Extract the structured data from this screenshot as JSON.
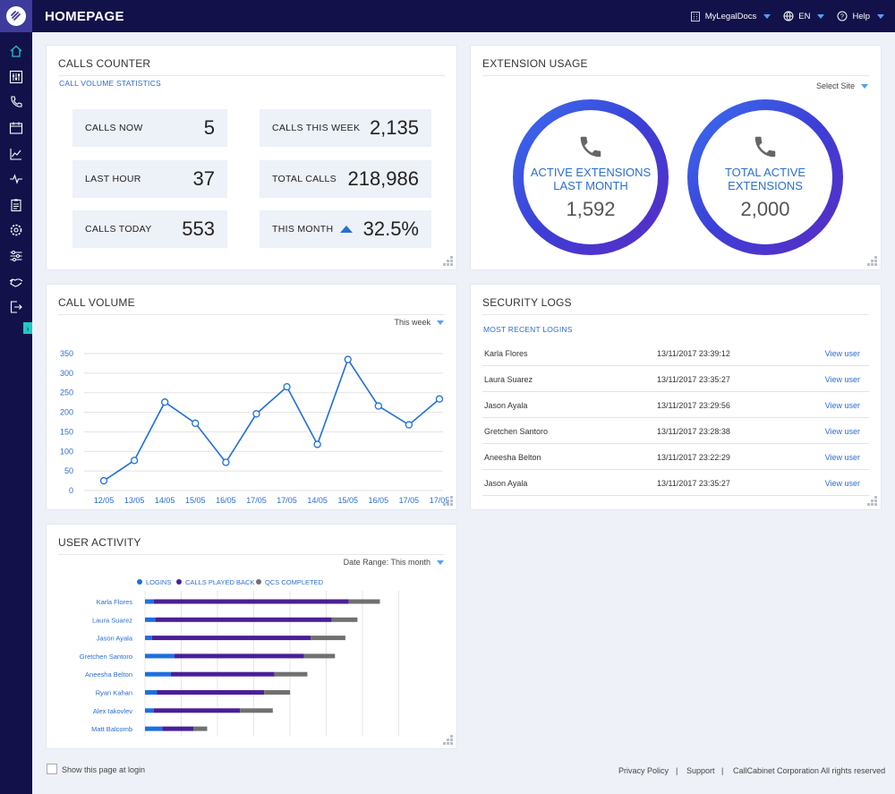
{
  "header": {
    "title": "HOMEPAGE",
    "account": "MyLegalDocs",
    "language": "EN",
    "help": "Help"
  },
  "sidebar": {
    "items": [
      "home-icon",
      "switchboard-icon",
      "phone-icon",
      "calendar-icon",
      "chart-icon",
      "pulse-icon",
      "clipboard-icon",
      "settings-icon",
      "sliders-icon",
      "handshake-icon",
      "logout-icon"
    ],
    "expand": "›"
  },
  "calls_counter": {
    "title": "CALLS COUNTER",
    "subtitle": "CALL VOLUME STATISTICS",
    "tiles": [
      {
        "label": "CALLS NOW",
        "value": "5"
      },
      {
        "label": "LAST HOUR",
        "value": "37"
      },
      {
        "label": "CALLS TODAY",
        "value": "553"
      },
      {
        "label": "CALLS THIS WEEK",
        "value": "2,135"
      },
      {
        "label": "TOTAL CALLS",
        "value": "218,986"
      },
      {
        "label": "THIS MONTH",
        "value": "32.5%"
      }
    ]
  },
  "extension_usage": {
    "title": "EXTENSION USAGE",
    "select": "Select Site",
    "rings": [
      {
        "label_line1": "ACTIVE EXTENSIONS",
        "label_line2": "LAST MONTH",
        "value": "1,592"
      },
      {
        "label_line1": "TOTAL ACTIVE",
        "label_line2": "EXTENSIONS",
        "value": "2,000"
      }
    ]
  },
  "call_volume": {
    "title": "CALL VOLUME",
    "select": "This week"
  },
  "security_logs": {
    "title": "SECURITY LOGS",
    "subtitle": "MOST RECENT LOGINS",
    "rows": [
      {
        "name": "Karla Flores",
        "time": "13/11/2017 23:39:12",
        "action": "View user"
      },
      {
        "name": "Laura Suarez",
        "time": "13/11/2017 23:35:27",
        "action": "View user"
      },
      {
        "name": "Jason Ayala",
        "time": "13/11/2017 23:29:56",
        "action": "View user"
      },
      {
        "name": "Gretchen Santoro",
        "time": "13/11/2017 23:28:38",
        "action": "View user"
      },
      {
        "name": "Aneesha Belton",
        "time": "13/11/2017 23:22:29",
        "action": "View user"
      },
      {
        "name": "Jason Ayala",
        "time": "13/11/2017 23:35:27",
        "action": "View user"
      }
    ]
  },
  "user_activity": {
    "title": "USER ACTIVITY",
    "select": "Date Range: This month"
  },
  "footer": {
    "show_at_login": "Show this page at login",
    "privacy": "Privacy Policy",
    "sep": "|",
    "support": "Support",
    "copyright": "CallCabinet Corporation All rights reserved"
  },
  "colors": {
    "navy": "#13114a",
    "accent_blue": "#2b6ed1",
    "logins": "#1e6fe0",
    "calls_played_back": "#4a1f96",
    "qcs_completed": "#707070"
  },
  "chart_data": [
    {
      "type": "line",
      "x": [
        "12/05",
        "13/05",
        "14/05",
        "15/05",
        "16/05",
        "17/05",
        "17/05",
        "14/05",
        "15/05",
        "16/05",
        "17/05",
        "17/05"
      ],
      "values": [
        25,
        77,
        226,
        172,
        72,
        196,
        265,
        118,
        335,
        216,
        168,
        234
      ],
      "ylim": [
        0,
        350
      ],
      "yticks": [
        0,
        50,
        100,
        150,
        200,
        250,
        300,
        350
      ],
      "grid": true
    },
    {
      "type": "bar",
      "orientation": "horizontal",
      "stacked": true,
      "categories": [
        "Karla Flores",
        "Laura Suarez",
        "Jason Ayala",
        "Gretchen Santoro",
        "Aneesha Belton",
        "Ryan Kahan",
        "Alex Iakovlev",
        "Matt Balcomb"
      ],
      "series": [
        {
          "name": "LOGINS",
          "values": [
            5,
            6,
            4,
            17,
            15,
            7,
            5,
            10
          ]
        },
        {
          "name": "CALLS PLAYED BACK",
          "values": [
            113,
            102,
            92,
            75,
            60,
            62,
            50,
            18
          ]
        },
        {
          "name": "QCS COMPLETED",
          "values": [
            18,
            15,
            20,
            18,
            19,
            15,
            19,
            8
          ]
        }
      ],
      "legend": "top"
    }
  ]
}
